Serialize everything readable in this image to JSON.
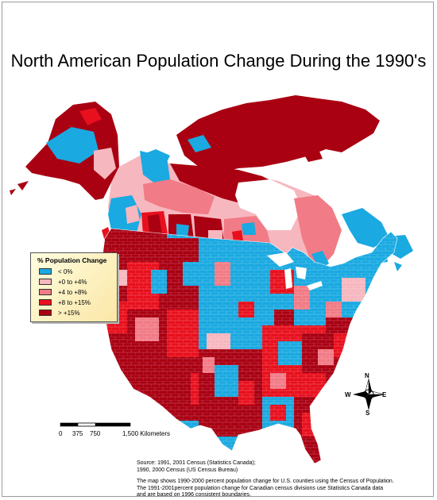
{
  "title": "North American Population Change During the 1990's",
  "legend": {
    "title": "% Population Change",
    "items": [
      {
        "label": "< 0%",
        "color": "#1aa9e1"
      },
      {
        "label": "+0 to +4%",
        "color": "#f7b7bf"
      },
      {
        "label": "+4 to +8%",
        "color": "#f17b86"
      },
      {
        "label": "+8 to +15%",
        "color": "#e8101d"
      },
      {
        "label": "> +15%",
        "color": "#a90012"
      }
    ]
  },
  "scale": {
    "labels": [
      "0",
      "375",
      "750",
      "1,500 Kilometers"
    ]
  },
  "compass": {
    "n": "N",
    "s": "S",
    "e": "E",
    "w": "W"
  },
  "source": {
    "line1": "Source: 1991, 2001 Census (Statistics Canada);",
    "line2": "1990, 2000 Census (US Census Bureau)",
    "note1": "The map shows 1990-2000 percent population change for U.S. counties using the Census of Population.",
    "note2": "The 1991-2001percent population change for Canadian census divisions use Statistics Canada data",
    "note3": "and are based on 1996 consistent boundaries."
  }
}
